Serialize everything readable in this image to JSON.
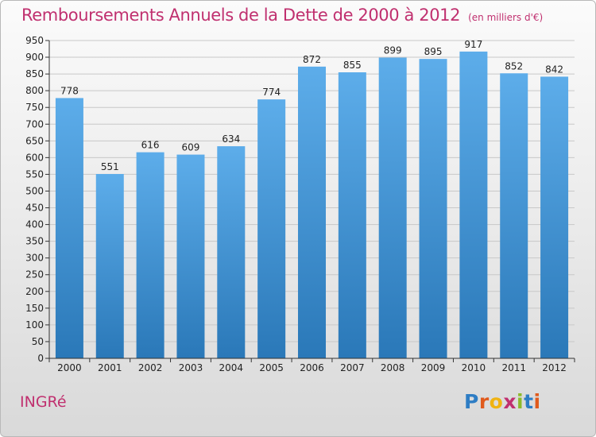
{
  "header": {
    "title": "Remboursements Annuels de la Dette de 2000 à 2012",
    "unit": "(en milliers d'€)"
  },
  "footer": {
    "place": "INGRé",
    "brand_letters": [
      {
        "ch": "P",
        "color": "#2e7dc4"
      },
      {
        "ch": "r",
        "color": "#e05a1c"
      },
      {
        "ch": "o",
        "color": "#f0b312"
      },
      {
        "ch": "x",
        "color": "#c0306f"
      },
      {
        "ch": "i",
        "color": "#8dba2b"
      },
      {
        "ch": "t",
        "color": "#2e7dc4"
      },
      {
        "ch": "i",
        "color": "#e05a1c"
      }
    ]
  },
  "chart_data": {
    "type": "bar",
    "title": "Remboursements Annuels de la Dette de 2000 à 2012",
    "subtitle": "(en milliers d'€)",
    "categories": [
      "2000",
      "2001",
      "2002",
      "2003",
      "2004",
      "2005",
      "2006",
      "2007",
      "2008",
      "2009",
      "2010",
      "2011",
      "2012"
    ],
    "values": [
      778,
      551,
      616,
      609,
      634,
      774,
      872,
      855,
      899,
      895,
      917,
      852,
      842
    ],
    "ylim": [
      0,
      950
    ],
    "ytick_step": 50,
    "grid": true,
    "bar_color_top": "#5dadea",
    "bar_color_bottom": "#2a78b8",
    "grid_color": "#c8c8c8"
  }
}
